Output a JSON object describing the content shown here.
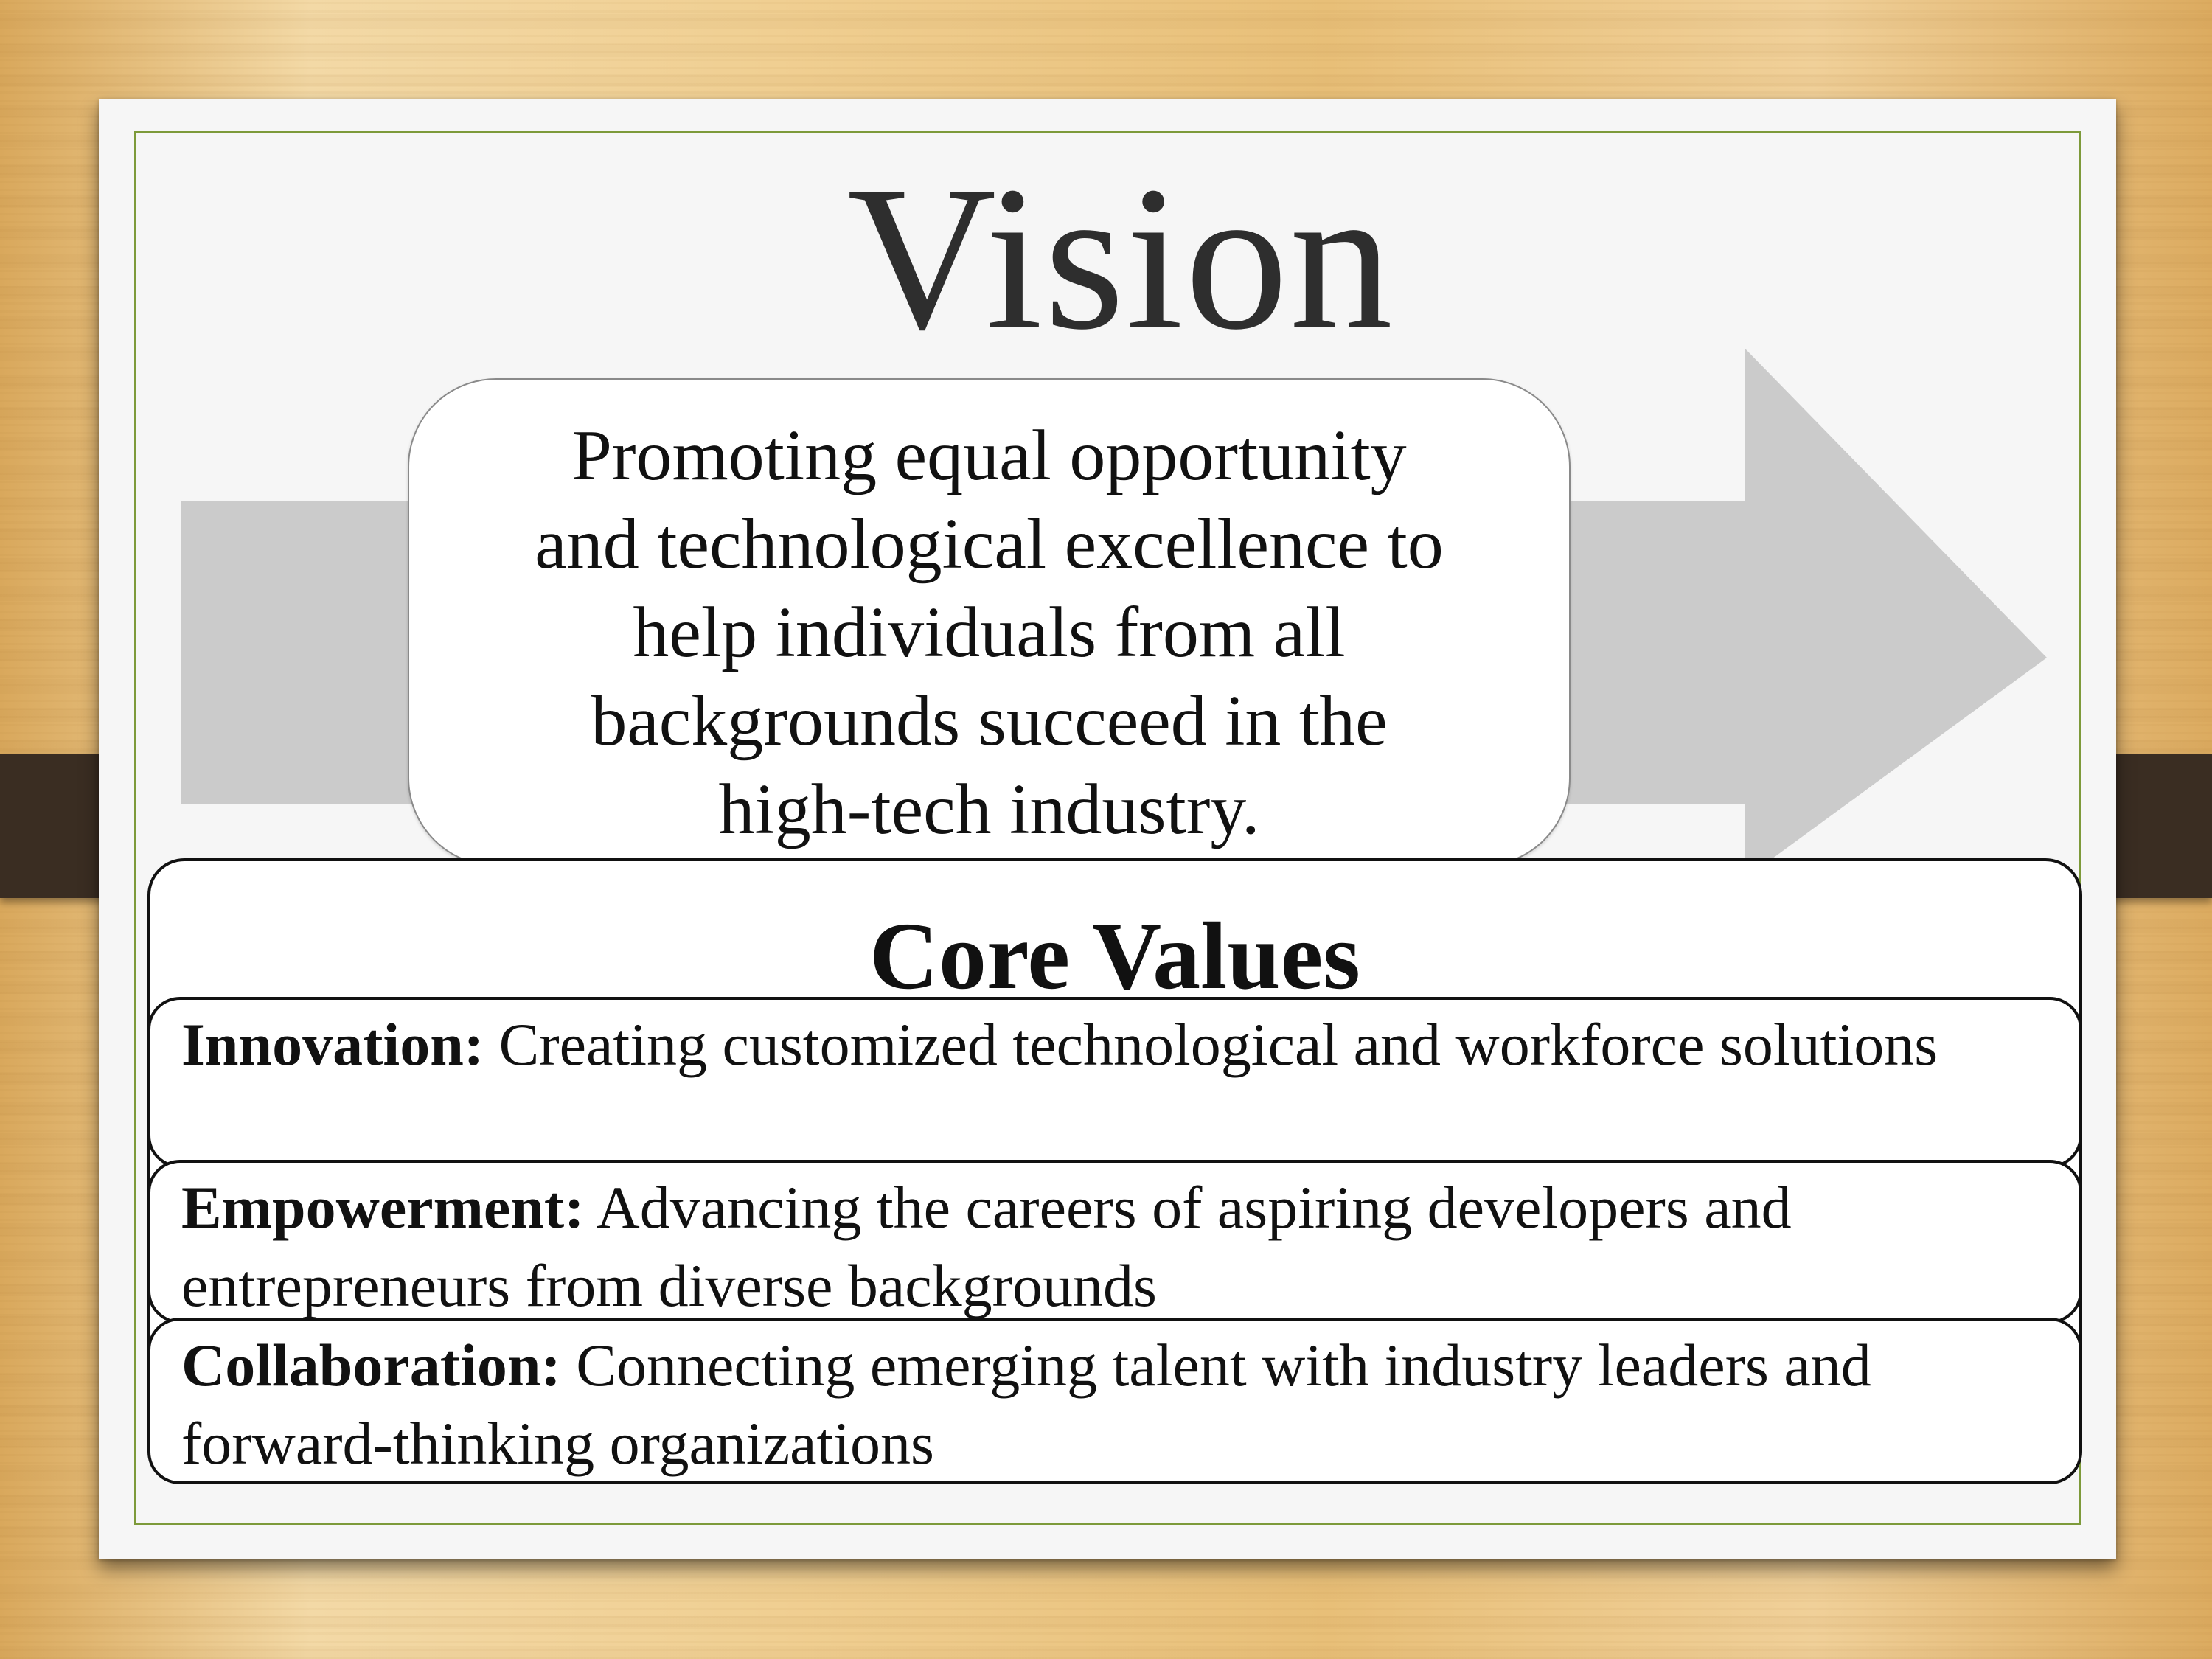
{
  "title": "Vision",
  "vision_statement": "Promoting equal opportunity and technological excellence to help individuals from all backgrounds succeed in the high-tech industry.",
  "vision_lines": [
    "Promoting equal opportunity",
    "and technological excellence to",
    "help individuals from all",
    "backgrounds succeed in the",
    "high-tech industry."
  ],
  "core_values": {
    "heading": "Core Values",
    "items": [
      {
        "name": "Innovation:",
        "description": "Creating customized technological and workforce solutions"
      },
      {
        "name": "Empowerment:",
        "description": "Advancing the careers of aspiring developers and entrepreneurs from diverse backgrounds"
      },
      {
        "name": "Collaboration:",
        "description": "Connecting emerging talent with industry leaders and forward-thinking organizations"
      }
    ]
  },
  "colors": {
    "frame_border": "#7d9a3a",
    "arrow_fill": "#cbcbcb",
    "strap": "#3a2d22"
  }
}
